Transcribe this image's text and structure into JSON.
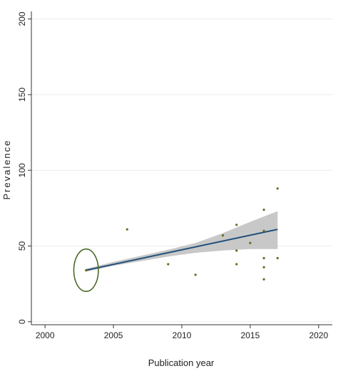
{
  "chart_data": {
    "type": "scatter",
    "xlabel": "Publication year",
    "ylabel": "Prevalence",
    "xlim": [
      1999,
      2021
    ],
    "ylim": [
      -2,
      205
    ],
    "x_ticks": [
      2000,
      2005,
      2010,
      2015,
      2020
    ],
    "y_ticks": [
      0,
      50,
      100,
      150,
      200
    ],
    "grid": "horizontal",
    "colors": {
      "points": "#6b6b1f",
      "fit_line": "#1f4e79",
      "ci_band": "#c8c8c8",
      "annotation": "#4a6b2a",
      "gridline": "#ececec",
      "axis": "#333333"
    },
    "points": [
      {
        "x": 2003,
        "y": 34
      },
      {
        "x": 2006,
        "y": 61
      },
      {
        "x": 2009,
        "y": 38
      },
      {
        "x": 2011,
        "y": 31
      },
      {
        "x": 2013,
        "y": 57
      },
      {
        "x": 2014,
        "y": 64
      },
      {
        "x": 2014,
        "y": 47
      },
      {
        "x": 2014,
        "y": 38
      },
      {
        "x": 2015,
        "y": 52
      },
      {
        "x": 2016,
        "y": 74
      },
      {
        "x": 2016,
        "y": 60
      },
      {
        "x": 2016,
        "y": 42
      },
      {
        "x": 2016,
        "y": 36
      },
      {
        "x": 2016,
        "y": 28
      },
      {
        "x": 2017,
        "y": 88
      },
      {
        "x": 2017,
        "y": 42
      }
    ],
    "fit_line": {
      "x": [
        2003,
        2017
      ],
      "y": [
        34,
        61
      ]
    },
    "ci_band": {
      "x": [
        2003,
        2005,
        2007,
        2009,
        2011,
        2013,
        2015,
        2017
      ],
      "lower": [
        33,
        37,
        40,
        43,
        45.5,
        47,
        48,
        48
      ],
      "upper": [
        35,
        39.5,
        43.5,
        47.5,
        52,
        58.5,
        66,
        73
      ]
    },
    "annotation": {
      "shape": "ellipse",
      "center": {
        "x": 2003,
        "y": 34
      },
      "rx_years": 0.9,
      "ry_units": 14
    }
  }
}
